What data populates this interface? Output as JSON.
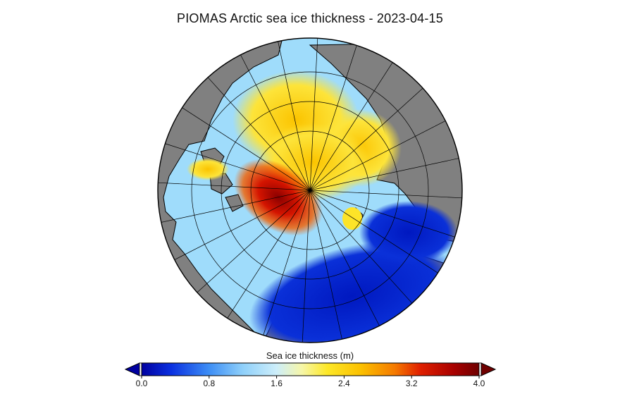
{
  "title": "PIOMAS Arctic sea ice thickness - 2023-04-15",
  "colorbar": {
    "label": "Sea ice thickness (m)",
    "min": 0.0,
    "max": 4.0,
    "ticks": [
      "0.0",
      "0.8",
      "1.6",
      "2.4",
      "3.2",
      "4.0"
    ],
    "extend": "both",
    "stops": [
      {
        "v": 0.0,
        "c": "#0000a0"
      },
      {
        "v": 0.35,
        "c": "#0a30e0"
      },
      {
        "v": 0.8,
        "c": "#3d8ef5"
      },
      {
        "v": 1.2,
        "c": "#8fd0fa"
      },
      {
        "v": 1.6,
        "c": "#cdeefa"
      },
      {
        "v": 1.9,
        "c": "#f6f6a8"
      },
      {
        "v": 2.2,
        "c": "#fde828"
      },
      {
        "v": 2.6,
        "c": "#fbc000"
      },
      {
        "v": 3.0,
        "c": "#f57a00"
      },
      {
        "v": 3.3,
        "c": "#e02000"
      },
      {
        "v": 3.7,
        "c": "#a80000"
      },
      {
        "v": 4.0,
        "c": "#6e0000"
      }
    ]
  },
  "map": {
    "projection": "north-polar-stereographic",
    "land_color": "#808080",
    "coastline_color": "#000000",
    "graticule_color": "#000000",
    "meridian_count": 24,
    "latitude_circles": 3
  }
}
